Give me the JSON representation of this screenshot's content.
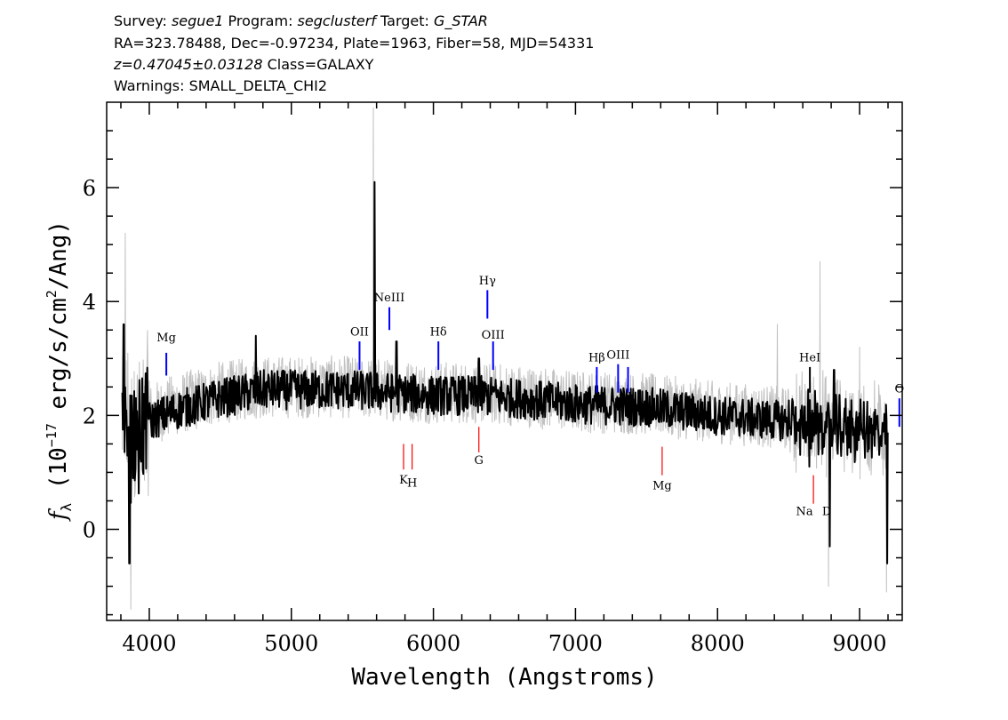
{
  "header": {
    "line1": {
      "survey_label": "Survey: ",
      "survey": "segue1",
      "program_label": " Program: ",
      "program": "segclusterf",
      "target_label": " Target: ",
      "target": "G_STAR"
    },
    "line2": "RA=323.78488, Dec=-0.97234, Plate=1963, Fiber=58, MJD=54331",
    "line3": {
      "redshift": "z=0.47045±0.03128",
      "class": " Class=GALAXY"
    },
    "line4": "Warnings: SMALL_DELTA_CHI2"
  },
  "chart_data": {
    "type": "line",
    "xlabel": "Wavelength (Angstroms)",
    "ylabel_prefix": "f",
    "ylabel_sub": "λ",
    "ylabel_main": " (10",
    "ylabel_exp": "−17",
    "ylabel_units": " erg/s/cm",
    "ylabel_exp2": "2",
    "ylabel_tail": "/Ang)",
    "xlim": [
      3700,
      9300
    ],
    "ylim": [
      -1.6,
      7.5
    ],
    "x_ticks": [
      4000,
      5000,
      6000,
      7000,
      8000,
      9000
    ],
    "x_tick_labels": [
      "4000",
      "5000",
      "6000",
      "7000",
      "8000",
      "9000"
    ],
    "y_ticks": [
      0,
      2,
      4,
      6
    ],
    "y_tick_labels": [
      "0",
      "2",
      "4",
      "6"
    ],
    "series": [
      {
        "role": "raw-flux",
        "color": "#c0c0c0",
        "continuum": [
          [
            3810,
            1.7
          ],
          [
            3900,
            1.8
          ],
          [
            4000,
            2.0
          ],
          [
            4200,
            2.2
          ],
          [
            4500,
            2.4
          ],
          [
            4800,
            2.5
          ],
          [
            5100,
            2.5
          ],
          [
            5400,
            2.5
          ],
          [
            5700,
            2.45
          ],
          [
            6000,
            2.4
          ],
          [
            6300,
            2.4
          ],
          [
            6600,
            2.35
          ],
          [
            7000,
            2.25
          ],
          [
            7500,
            2.2
          ],
          [
            8000,
            2.05
          ],
          [
            8500,
            1.95
          ],
          [
            8800,
            1.85
          ],
          [
            9000,
            1.8
          ],
          [
            9200,
            1.7
          ]
        ],
        "features": [
          [
            3830,
            5.2
          ],
          [
            3870,
            -1.4
          ],
          [
            5577,
            7.4
          ],
          [
            8720,
            4.7
          ],
          [
            8780,
            -1.0
          ],
          [
            8420,
            3.6
          ],
          [
            9000,
            3.2
          ],
          [
            9190,
            -1.1
          ]
        ]
      },
      {
        "role": "smoothed-flux",
        "color": "#000000",
        "continuum": [
          [
            3810,
            1.5
          ],
          [
            3900,
            1.6
          ],
          [
            4000,
            1.9
          ],
          [
            4200,
            2.1
          ],
          [
            4500,
            2.3
          ],
          [
            4800,
            2.45
          ],
          [
            5100,
            2.45
          ],
          [
            5400,
            2.45
          ],
          [
            5700,
            2.4
          ],
          [
            6000,
            2.35
          ],
          [
            6300,
            2.35
          ],
          [
            6600,
            2.3
          ],
          [
            7000,
            2.2
          ],
          [
            7500,
            2.15
          ],
          [
            8000,
            2.0
          ],
          [
            8500,
            1.9
          ],
          [
            8800,
            1.8
          ],
          [
            9000,
            1.75
          ],
          [
            9200,
            1.65
          ]
        ],
        "features": [
          [
            3820,
            3.6
          ],
          [
            3860,
            -0.6
          ],
          [
            4750,
            3.4
          ],
          [
            5585,
            6.1
          ],
          [
            5740,
            3.3
          ],
          [
            6320,
            3.0
          ],
          [
            6420,
            2.5
          ],
          [
            8645,
            1.1
          ],
          [
            8790,
            -0.3
          ],
          [
            8820,
            2.8
          ],
          [
            9195,
            -0.6
          ]
        ]
      }
    ],
    "emission_lines": [
      {
        "label": "Mg",
        "x": 4120,
        "y0": 2.7,
        "y1": 3.1,
        "color": "#0000ff",
        "label_y": 3.3
      },
      {
        "label": "OII",
        "x": 5480,
        "y0": 2.8,
        "y1": 3.3,
        "color": "#0000ff",
        "label_y": 3.4
      },
      {
        "label": "NeIII",
        "x": 5690,
        "y0": 3.5,
        "y1": 3.9,
        "color": "#0000ff",
        "label_y": 4.0
      },
      {
        "label": "Hδ",
        "x": 6035,
        "y0": 2.8,
        "y1": 3.3,
        "color": "#0000ff",
        "label_y": 3.4
      },
      {
        "label": "Hγ",
        "x": 6380,
        "y0": 3.7,
        "y1": 4.2,
        "color": "#0000ff",
        "label_y": 4.3
      },
      {
        "label": "OIII",
        "x": 6420,
        "y0": 2.8,
        "y1": 3.3,
        "color": "#0000ff",
        "label_y": 3.35
      },
      {
        "label": "Hβ",
        "x": 7150,
        "y0": 2.4,
        "y1": 2.85,
        "color": "#0000ff",
        "label_y": 2.95
      },
      {
        "label": "OIII",
        "x": 7300,
        "y0": 2.4,
        "y1": 2.9,
        "color": "#0000ff",
        "label_y": 3.0
      },
      {
        "label": "",
        "x": 7370,
        "y0": 2.4,
        "y1": 2.85,
        "color": "#0000ff",
        "label_y": 3.0
      },
      {
        "label": "HeI",
        "x": 8650,
        "y0": 2.4,
        "y1": 2.85,
        "color": "#000000",
        "label_y": 2.95
      },
      {
        "label": "O",
        "x": 9280,
        "y0": 1.8,
        "y1": 2.3,
        "color": "#0000ff",
        "label_y": 2.4
      }
    ],
    "absorption_lines": [
      {
        "label": "K",
        "x": 5790,
        "y0": 1.05,
        "y1": 1.5,
        "color": "#ff0000",
        "label_y": 0.8
      },
      {
        "label": "H",
        "x": 5850,
        "y0": 1.05,
        "y1": 1.5,
        "color": "#ff0000",
        "label_y": 0.75
      },
      {
        "label": "G",
        "x": 6320,
        "y0": 1.35,
        "y1": 1.8,
        "color": "#ff0000",
        "label_y": 1.15
      },
      {
        "label": "Mg",
        "x": 7610,
        "y0": 0.95,
        "y1": 1.45,
        "color": "#ff0000",
        "label_y": 0.7
      },
      {
        "label": "Na",
        "x": 8675,
        "y0": 0.45,
        "y1": 0.95,
        "color": "#ff0000",
        "label_y": 0.25,
        "label_dx": -10
      },
      {
        "label": "D",
        "x": 8675,
        "y0": 0.45,
        "y1": 0.45,
        "color": "#ff0000",
        "label_y": 0.25,
        "label_dx": 15
      }
    ]
  }
}
